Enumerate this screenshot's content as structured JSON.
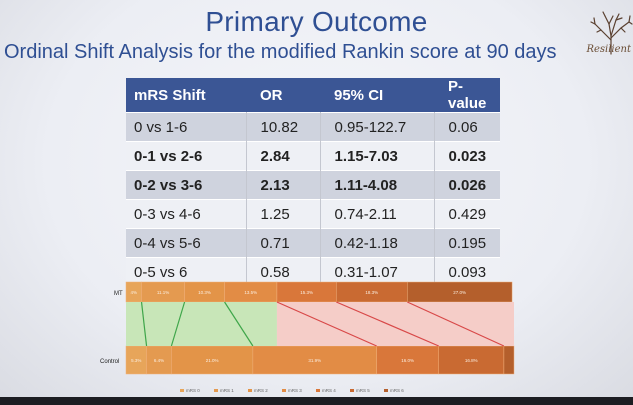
{
  "title": "Primary Outcome",
  "subtitle": "Ordinal Shift Analysis for the modified Rankin score at 90 days",
  "logo_text": "Resilient",
  "table": {
    "headers": [
      "mRS Shift",
      "OR",
      "95% CI",
      "P-value"
    ],
    "rows": [
      {
        "shift": "0 vs 1-6",
        "or": "10.82",
        "ci": "0.95-122.7",
        "p": "0.06",
        "bold": false
      },
      {
        "shift": "0-1 vs 2-6",
        "or": "2.84",
        "ci": "1.15-7.03",
        "p": "0.023",
        "bold": true
      },
      {
        "shift": "0-2 vs 3-6",
        "or": "2.13",
        "ci": "1.11-4.08",
        "p": "0.026",
        "bold": true
      },
      {
        "shift": "0-3 vs 4-6",
        "or": "1.25",
        "ci": "0.74-2.11",
        "p": "0.429",
        "bold": false
      },
      {
        "shift": "0-4 vs 5-6",
        "or": "0.71",
        "ci": "0.42-1.18",
        "p": "0.195",
        "bold": false
      },
      {
        "shift": "0-5 vs 6",
        "or": "0.58",
        "ci": "0.31-1.07",
        "p": "0.093",
        "bold": false
      }
    ]
  },
  "chart_data": {
    "type": "bar",
    "orientation": "horizontal-stacked",
    "categories": [
      "MT",
      "Control"
    ],
    "series": [
      {
        "name": "mRS 0",
        "color": "#e7a55a",
        "values": [
          4.0,
          5.3
        ]
      },
      {
        "name": "mRS 1",
        "color": "#e49a50",
        "values": [
          11.1,
          6.4
        ]
      },
      {
        "name": "mRS 2",
        "color": "#e39448",
        "values": [
          10.3,
          21.0
        ]
      },
      {
        "name": "mRS 3",
        "color": "#e28c45",
        "values": [
          13.5,
          31.9
        ]
      },
      {
        "name": "mRS 4",
        "color": "#d9773a",
        "values": [
          15.3,
          16.0
        ]
      },
      {
        "name": "mRS 5",
        "color": "#c96a32",
        "values": [
          18.3,
          16.8
        ]
      },
      {
        "name": "mRS 6",
        "color": "#b45f2c",
        "values": [
          27.0,
          2.6
        ]
      }
    ],
    "labels": {
      "MT": [
        "4%",
        "11.1%",
        "10.3%",
        "13.5%",
        "15.3%",
        "18.3%",
        "27.0%"
      ],
      "Control": [
        "5.3%",
        "6.4%",
        "21.0%",
        "31.9%",
        "16.0%",
        "16.8%"
      ]
    },
    "legend_position": "bottom",
    "shift_region_colors": {
      "favorable": "#c8e6b8",
      "unfavorable": "#f5cdc8",
      "line_good": "#3fa64a",
      "line_bad": "#d84848"
    }
  }
}
